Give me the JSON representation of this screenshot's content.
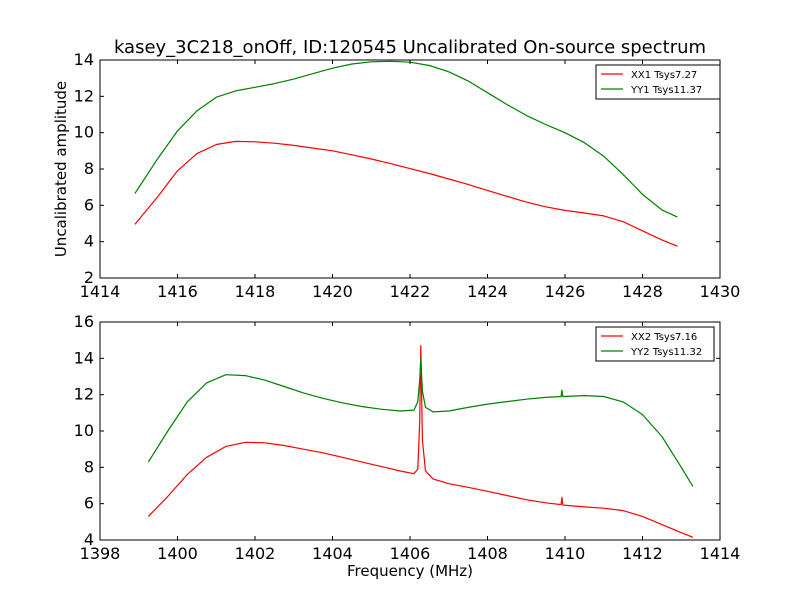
{
  "figure": {
    "title": "kasey_3C218_onOff, ID:120545 Uncalibrated On-source spectrum",
    "ylabel": "Uncalibrated amplitude",
    "xlabel": "Frequency (MHz)"
  },
  "chart_data": [
    {
      "type": "line",
      "title": "kasey_3C218_onOff, ID:120545 Uncalibrated On-source spectrum",
      "ylabel": "Uncalibrated amplitude",
      "xlabel": "",
      "xlim": [
        1414,
        1430
      ],
      "ylim": [
        2,
        14
      ],
      "xticks": [
        1414,
        1416,
        1418,
        1420,
        1422,
        1424,
        1426,
        1428,
        1430
      ],
      "yticks": [
        2,
        4,
        6,
        8,
        10,
        12,
        14
      ],
      "grid": false,
      "legend_position": "top-right",
      "series": [
        {
          "name": "XX1 Tsys7.27",
          "color": "#ff0000",
          "x": [
            1414.9,
            1415.5,
            1416.0,
            1416.5,
            1417.0,
            1417.5,
            1418.0,
            1418.5,
            1419.0,
            1419.5,
            1420.0,
            1420.5,
            1421.0,
            1421.5,
            1422.0,
            1422.5,
            1423.0,
            1423.5,
            1424.0,
            1424.5,
            1425.0,
            1425.5,
            1426.0,
            1426.5,
            1427.0,
            1427.5,
            1428.0,
            1428.5,
            1428.9
          ],
          "y": [
            4.95,
            6.5,
            7.9,
            8.85,
            9.35,
            9.52,
            9.5,
            9.42,
            9.3,
            9.15,
            9.0,
            8.78,
            8.55,
            8.3,
            8.02,
            7.75,
            7.45,
            7.15,
            6.82,
            6.5,
            6.18,
            5.92,
            5.72,
            5.58,
            5.42,
            5.1,
            4.6,
            4.1,
            3.75
          ]
        },
        {
          "name": "YY1 Tsys11.37",
          "color": "#008000",
          "x": [
            1414.9,
            1415.5,
            1416.0,
            1416.5,
            1417.0,
            1417.5,
            1418.0,
            1418.5,
            1419.0,
            1419.5,
            1420.0,
            1420.5,
            1421.0,
            1421.5,
            1422.0,
            1422.5,
            1423.0,
            1423.5,
            1424.0,
            1424.5,
            1425.0,
            1425.5,
            1426.0,
            1426.5,
            1427.0,
            1427.5,
            1428.0,
            1428.5,
            1428.9
          ],
          "y": [
            6.65,
            8.6,
            10.1,
            11.2,
            11.95,
            12.3,
            12.5,
            12.7,
            12.95,
            13.25,
            13.55,
            13.78,
            13.9,
            13.93,
            13.88,
            13.7,
            13.35,
            12.85,
            12.2,
            11.55,
            10.95,
            10.45,
            10.0,
            9.45,
            8.7,
            7.7,
            6.6,
            5.75,
            5.35
          ]
        }
      ]
    },
    {
      "type": "line",
      "title": "",
      "ylabel": "",
      "xlabel": "Frequency (MHz)",
      "xlim": [
        1398,
        1414
      ],
      "ylim": [
        4,
        16
      ],
      "xticks": [
        1398,
        1400,
        1402,
        1404,
        1406,
        1408,
        1410,
        1412,
        1414
      ],
      "yticks": [
        4,
        6,
        8,
        10,
        12,
        14,
        16
      ],
      "grid": false,
      "legend_position": "top-right",
      "series": [
        {
          "name": "XX2 Tsys7.16",
          "color": "#ff0000",
          "x": [
            1399.25,
            1399.75,
            1400.25,
            1400.75,
            1401.25,
            1401.75,
            1402.25,
            1402.75,
            1403.25,
            1403.75,
            1404.25,
            1404.75,
            1405.25,
            1405.75,
            1406.1,
            1406.2,
            1406.25,
            1406.28,
            1406.32,
            1406.4,
            1406.6,
            1407.0,
            1407.5,
            1408.0,
            1408.5,
            1409.0,
            1409.5,
            1409.9,
            1409.92,
            1409.94,
            1409.96,
            1410.5,
            1411.0,
            1411.5,
            1412.0,
            1412.5,
            1413.0,
            1413.3
          ],
          "y": [
            5.3,
            6.4,
            7.6,
            8.55,
            9.15,
            9.38,
            9.35,
            9.2,
            9.0,
            8.8,
            8.55,
            8.3,
            8.05,
            7.8,
            7.65,
            7.9,
            10.5,
            14.7,
            9.5,
            7.8,
            7.35,
            7.1,
            6.9,
            6.68,
            6.45,
            6.22,
            6.05,
            5.95,
            6.35,
            5.95,
            5.92,
            5.82,
            5.75,
            5.62,
            5.3,
            4.85,
            4.4,
            4.15
          ]
        },
        {
          "name": "YY2 Tsys11.32",
          "color": "#008000",
          "x": [
            1399.25,
            1399.75,
            1400.25,
            1400.75,
            1401.25,
            1401.75,
            1402.25,
            1402.75,
            1403.25,
            1403.75,
            1404.25,
            1404.75,
            1405.25,
            1405.75,
            1406.1,
            1406.2,
            1406.25,
            1406.28,
            1406.32,
            1406.4,
            1406.6,
            1407.0,
            1407.5,
            1408.0,
            1408.5,
            1409.0,
            1409.5,
            1409.9,
            1409.92,
            1409.94,
            1409.96,
            1410.5,
            1411.0,
            1411.5,
            1412.0,
            1412.5,
            1413.0,
            1413.3
          ],
          "y": [
            8.3,
            10.0,
            11.6,
            12.65,
            13.1,
            13.05,
            12.8,
            12.45,
            12.1,
            11.8,
            11.55,
            11.35,
            11.2,
            11.1,
            11.15,
            11.6,
            12.8,
            14.0,
            12.2,
            11.3,
            11.05,
            11.1,
            11.3,
            11.48,
            11.62,
            11.75,
            11.85,
            11.9,
            12.25,
            11.9,
            11.9,
            11.95,
            11.9,
            11.6,
            10.9,
            9.7,
            8.0,
            6.95
          ]
        }
      ]
    }
  ]
}
